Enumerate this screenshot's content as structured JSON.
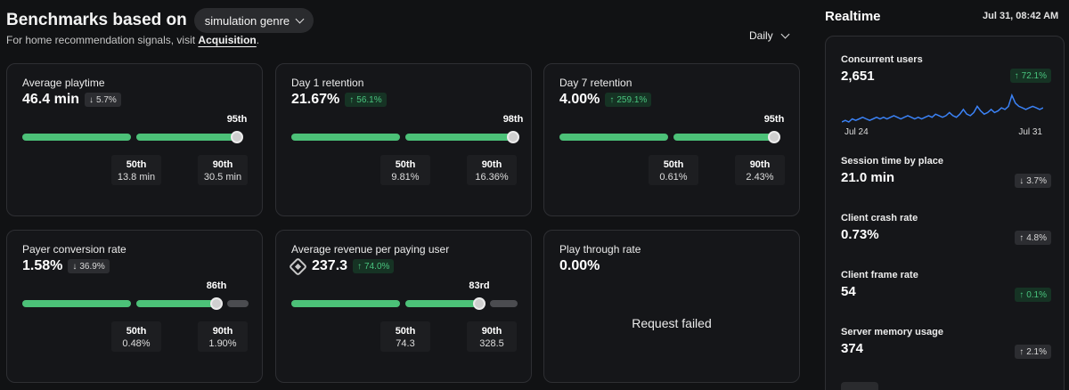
{
  "header": {
    "title": "Benchmarks based on",
    "genre": "simulation genre",
    "subline_prefix": "For home recommendation signals, visit ",
    "subline_link": "Acquisition",
    "subline_suffix": ".",
    "interval": "Daily"
  },
  "cards": {
    "avg_playtime": {
      "title": "Average playtime",
      "value": "46.4 min",
      "badge": "5.7%",
      "badge_arrow": "↓",
      "percentile_label": "95th",
      "percentile": 95,
      "b50_label": "50th",
      "b50_value": "13.8 min",
      "b90_label": "90th",
      "b90_value": "30.5 min"
    },
    "day1": {
      "title": "Day 1 retention",
      "value": "21.67%",
      "badge": "56.1%",
      "badge_arrow": "↑",
      "percentile_label": "98th",
      "percentile": 98,
      "b50_label": "50th",
      "b50_value": "9.81%",
      "b90_label": "90th",
      "b90_value": "16.36%"
    },
    "day7": {
      "title": "Day 7 retention",
      "value": "4.00%",
      "badge": "259.1%",
      "badge_arrow": "↑",
      "percentile_label": "95th",
      "percentile": 95,
      "b50_label": "50th",
      "b50_value": "0.61%",
      "b90_label": "90th",
      "b90_value": "2.43%"
    },
    "payer": {
      "title": "Payer conversion rate",
      "value": "1.58%",
      "badge": "36.9%",
      "badge_arrow": "↓",
      "percentile_label": "86th",
      "percentile": 86,
      "b50_label": "50th",
      "b50_value": "0.48%",
      "b90_label": "90th",
      "b90_value": "1.90%"
    },
    "arppu": {
      "title": "Average revenue per paying user",
      "value": "237.3",
      "badge": "74.0%",
      "badge_arrow": "↑",
      "percentile_label": "83rd",
      "percentile": 83,
      "b50_label": "50th",
      "b50_value": "74.3",
      "b90_label": "90th",
      "b90_value": "328.5"
    },
    "playthrough": {
      "title": "Play through rate",
      "value": "0.00%",
      "status": "Request failed"
    }
  },
  "realtime": {
    "title": "Realtime",
    "timestamp": "Jul 31, 08:42 AM",
    "concurrent": {
      "label": "Concurrent users",
      "value": "2,651",
      "badge": "72.1%",
      "badge_arrow": "↑"
    },
    "spark_start": "Jul 24",
    "spark_end": "Jul 31",
    "spark_values": [
      28,
      29,
      28,
      30,
      29,
      30,
      31,
      30,
      29,
      30,
      31,
      30,
      31,
      30,
      31,
      32,
      31,
      30,
      31,
      32,
      31,
      30,
      31,
      30,
      31,
      32,
      31,
      33,
      32,
      31,
      32,
      34,
      32,
      31,
      33,
      36,
      33,
      32,
      34,
      38,
      35,
      33,
      34,
      36,
      34,
      35,
      37,
      36,
      38,
      45,
      40,
      38,
      37,
      36,
      37,
      38,
      37,
      36,
      37
    ],
    "items": [
      {
        "label": "Session time by place",
        "value": "21.0 min",
        "badge": "3.7%",
        "badge_arrow": "↓",
        "trend": "neutral"
      },
      {
        "label": "Client crash rate",
        "value": "0.73%",
        "badge": "4.8%",
        "badge_arrow": "↑",
        "trend": "neutral"
      },
      {
        "label": "Client frame rate",
        "value": "54",
        "badge": "0.1%",
        "badge_arrow": "↑",
        "trend": "up"
      },
      {
        "label": "Server memory usage",
        "value": "374",
        "badge": "2.1%",
        "badge_arrow": "↑",
        "trend": "neutral"
      }
    ]
  },
  "colors": {
    "accent_green": "#4cc178",
    "spark_blue": "#3b82f6",
    "bg": "#111214"
  }
}
